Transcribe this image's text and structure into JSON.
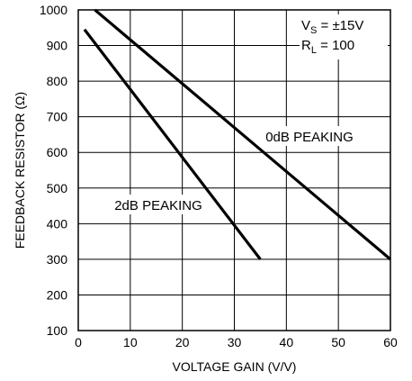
{
  "chart_data": {
    "type": "line",
    "title": "",
    "xlabel": "VOLTAGE GAIN (V/V)",
    "ylabel": "FEEDBACK RESISTOR (Ω)",
    "xlim": [
      0,
      60
    ],
    "ylim": [
      100,
      1000
    ],
    "xticks": [
      0,
      10,
      20,
      30,
      40,
      50,
      60
    ],
    "yticks": [
      100,
      200,
      300,
      400,
      500,
      600,
      700,
      800,
      900,
      1000
    ],
    "grid": true,
    "series": [
      {
        "name": "0dB PEAKING",
        "x": [
          3.2,
          60
        ],
        "y": [
          1000,
          300
        ]
      },
      {
        "name": "2dB PEAKING",
        "x": [
          1.2,
          35
        ],
        "y": [
          945,
          300
        ]
      }
    ],
    "annotations": {
      "vs_main": "V",
      "vs_sub": "S",
      "vs_rest": " = ±15V",
      "rl_main": "R",
      "rl_sub": "L",
      "rl_rest": " = 100"
    }
  }
}
